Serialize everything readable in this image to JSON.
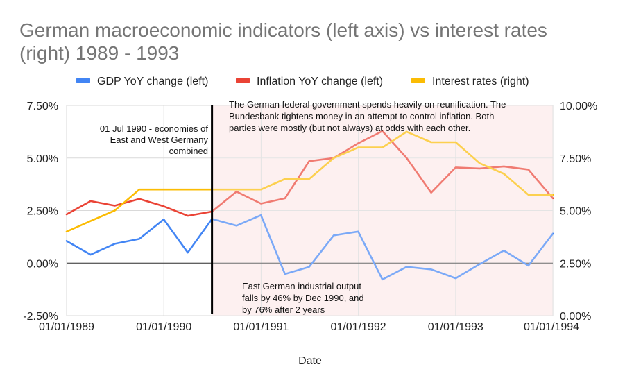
{
  "chart_data": {
    "type": "line",
    "title_line1": "German macroeconomic indicators (left axis) vs interest rates",
    "title_line2": "(right) 1989 - 1993",
    "xlabel": "Date",
    "x_ticks": [
      "01/01/1989",
      "01/01/1990",
      "01/01/1991",
      "01/01/1992",
      "01/01/1993",
      "01/01/1994"
    ],
    "x_range": [
      "1989-01-01",
      "1994-01-01"
    ],
    "y_left_ticks": [
      "7.50%",
      "5.00%",
      "2.50%",
      "0.00%",
      "-2.50%"
    ],
    "y_left_range": [
      -2.5,
      7.5
    ],
    "y_right_ticks": [
      "10.00%",
      "7.50%",
      "5.00%",
      "2.50%",
      "0.00%"
    ],
    "y_right_range": [
      0,
      10
    ],
    "x": [
      "1989-01-01",
      "1989-04-01",
      "1989-07-01",
      "1989-10-01",
      "1990-01-01",
      "1990-04-01",
      "1990-07-01",
      "1990-10-01",
      "1991-01-01",
      "1991-04-01",
      "1991-07-01",
      "1991-10-01",
      "1992-01-01",
      "1992-04-01",
      "1992-07-01",
      "1992-10-01",
      "1993-01-01",
      "1993-04-01",
      "1993-07-01",
      "1993-10-01",
      "1994-01-01"
    ],
    "series": [
      {
        "name": "GDP YoY change (left)",
        "color": "#4285f4",
        "values": [
          1.05,
          0.4,
          0.92,
          1.15,
          2.08,
          0.5,
          2.1,
          1.78,
          2.28,
          -0.52,
          -0.18,
          1.32,
          1.5,
          -0.78,
          -0.18,
          -0.3,
          -0.72,
          -0.05,
          0.6,
          -0.12,
          1.4
        ]
      },
      {
        "name": "Inflation YoY change (left)",
        "color": "#ea4335",
        "values": [
          2.32,
          2.95,
          2.73,
          3.05,
          2.7,
          2.25,
          2.45,
          3.4,
          2.83,
          3.08,
          4.85,
          5.0,
          5.7,
          6.28,
          5.0,
          3.35,
          4.55,
          4.5,
          4.6,
          4.45,
          3.08
        ]
      },
      {
        "name": "Interest rates (right)",
        "color": "#fbbc04",
        "values": [
          4.0,
          4.5,
          5.0,
          6.0,
          6.0,
          6.0,
          6.0,
          6.0,
          6.0,
          6.5,
          6.5,
          7.5,
          8.0,
          8.0,
          8.75,
          8.25,
          8.25,
          7.25,
          6.75,
          5.75,
          5.75
        ]
      }
    ],
    "annotations": {
      "merge_date": "1990-07-01",
      "merge_label": [
        "01 Jul 1990 - economies of",
        "East and West Germany",
        "combined"
      ],
      "reunification_note": [
        "The German federal government spends heavily on reunification. The",
        "Bundesbank tightens money in an attempt to control inflation. Both",
        "parties were mostly (but not always) at odds with each other."
      ],
      "industrial_note": [
        "East German industrial output",
        "falls by 46% by Dec 1990, and",
        "by 76% after 2 years"
      ],
      "shaded_region_start": "1990-07-01",
      "shaded_region_end": "1994-01-01",
      "shade_color": "#fdeaea"
    },
    "grid": true,
    "legend_position": "top"
  }
}
